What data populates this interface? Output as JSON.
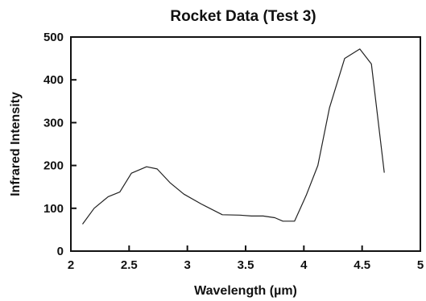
{
  "chart_data": {
    "type": "line",
    "title": "Rocket Data (Test 3)",
    "xlabel": "Wavelength (µm)",
    "ylabel": "Infrared Intensity",
    "xlim": [
      2,
      5
    ],
    "ylim": [
      0,
      500
    ],
    "xticks": [
      2,
      2.5,
      3,
      3.5,
      4,
      4.5,
      5
    ],
    "xtick_labels": [
      "2",
      "2.5",
      "3",
      "3.5",
      "4",
      "4.5",
      "5"
    ],
    "yticks": [
      0,
      100,
      200,
      300,
      400,
      500
    ],
    "ytick_labels": [
      "0",
      "100",
      "200",
      "300",
      "400",
      "500"
    ],
    "grid": false,
    "series": [
      {
        "x": [
          2.1,
          2.2,
          2.32,
          2.42,
          2.52,
          2.65,
          2.74,
          2.85,
          2.97,
          3.12,
          3.3,
          3.45,
          3.55,
          3.65,
          3.75,
          3.82,
          3.92,
          4.02,
          4.12,
          4.22,
          4.35,
          4.48,
          4.58,
          4.69
        ],
        "y": [
          63,
          100,
          127,
          138,
          182,
          197,
          192,
          160,
          133,
          110,
          85,
          84,
          82,
          82,
          78,
          70,
          70,
          130,
          200,
          335,
          450,
          472,
          437,
          183
        ]
      }
    ]
  }
}
